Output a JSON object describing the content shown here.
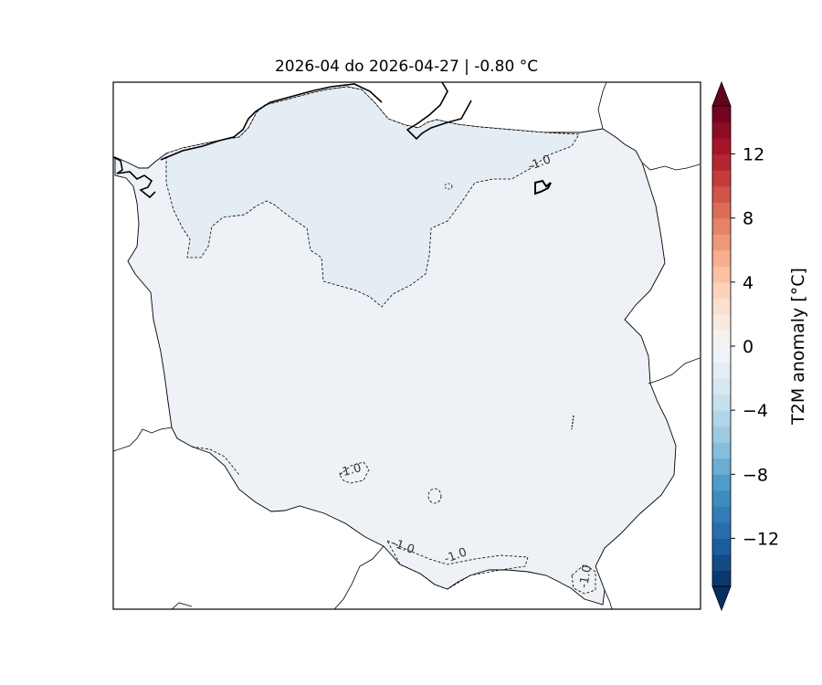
{
  "map": {
    "title": "2026-04 do 2026-04-27 | -0.80 °C",
    "region": "Poland",
    "variable": "T2M anomaly",
    "field_colors": {
      "main": "#eef2f6",
      "below_contour": "#e4ecf4",
      "neighbors": "#ffffff"
    },
    "contour": {
      "level": -1.0,
      "style": "dashed",
      "labels": [
        "-1.0",
        "-1.0",
        "-1.0",
        "-1.0",
        "-1.0"
      ]
    }
  },
  "colorbar": {
    "label": "T2M anomaly [°C]",
    "vmin": -15,
    "vmax": 15,
    "step": 1,
    "extend": "both",
    "ticks": [
      -12,
      -8,
      -4,
      0,
      4,
      8,
      12
    ],
    "tick_labels": [
      "−12",
      "−8",
      "−4",
      "0",
      "4",
      "8",
      "12"
    ],
    "cmap": "RdBu_r"
  }
}
